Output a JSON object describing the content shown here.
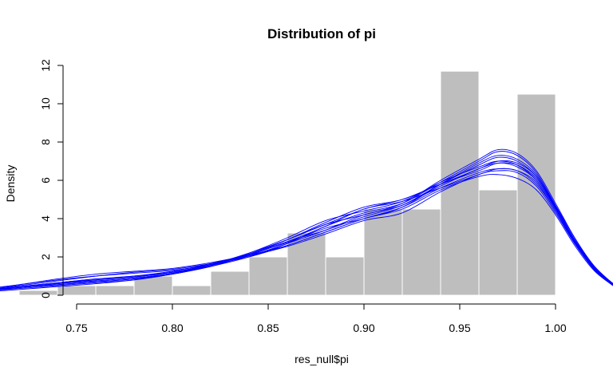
{
  "chart_data": {
    "type": "histogram",
    "title": "Distribution of pi",
    "xlabel": "res_null$pi",
    "ylabel": "Density",
    "xlim": [
      0.71,
      1.03
    ],
    "ylim": [
      0,
      12
    ],
    "x_ticks": [
      "0.75",
      "0.80",
      "0.85",
      "0.90",
      "0.95",
      "1.00"
    ],
    "y_ticks": [
      "0",
      "2",
      "4",
      "6",
      "8",
      "10",
      "12"
    ],
    "bar_color": "#bebebe",
    "bar_border_color": "#ffffff",
    "curve_color": "#0000ff",
    "bins": [
      {
        "x0": 0.72,
        "x1": 0.74,
        "density": 0.25
      },
      {
        "x0": 0.74,
        "x1": 0.76,
        "density": 0.5
      },
      {
        "x0": 0.76,
        "x1": 0.78,
        "density": 0.5
      },
      {
        "x0": 0.78,
        "x1": 0.8,
        "density": 1.0
      },
      {
        "x0": 0.8,
        "x1": 0.82,
        "density": 0.5
      },
      {
        "x0": 0.82,
        "x1": 0.84,
        "density": 1.25
      },
      {
        "x0": 0.84,
        "x1": 0.86,
        "density": 2.0
      },
      {
        "x0": 0.86,
        "x1": 0.88,
        "density": 3.25
      },
      {
        "x0": 0.88,
        "x1": 0.9,
        "density": 2.0
      },
      {
        "x0": 0.9,
        "x1": 0.92,
        "density": 4.5
      },
      {
        "x0": 0.92,
        "x1": 0.94,
        "density": 4.5
      },
      {
        "x0": 0.94,
        "x1": 0.96,
        "density": 11.7
      },
      {
        "x0": 0.96,
        "x1": 0.98,
        "density": 5.5
      },
      {
        "x0": 0.98,
        "x1": 1.0,
        "density": 10.5
      }
    ],
    "density_curves": {
      "x": [
        0.7,
        0.72,
        0.74,
        0.76,
        0.78,
        0.8,
        0.82,
        0.84,
        0.86,
        0.88,
        0.9,
        0.92,
        0.94,
        0.96,
        0.97,
        0.98,
        0.99,
        1.0,
        1.01,
        1.02,
        1.03
      ],
      "series": [
        {
          "values": [
            0.25,
            0.45,
            0.65,
            0.8,
            0.95,
            1.2,
            1.6,
            2.1,
            2.8,
            3.4,
            4.1,
            4.7,
            5.8,
            6.8,
            7.2,
            7.0,
            6.2,
            4.6,
            2.9,
            1.5,
            0.6
          ]
        },
        {
          "values": [
            0.2,
            0.4,
            0.6,
            0.75,
            0.9,
            1.15,
            1.55,
            2.2,
            3.0,
            3.9,
            4.4,
            4.9,
            5.9,
            6.7,
            7.0,
            6.8,
            6.0,
            4.5,
            2.8,
            1.4,
            0.55
          ]
        },
        {
          "values": [
            0.3,
            0.55,
            0.85,
            1.1,
            1.25,
            1.4,
            1.7,
            2.1,
            2.6,
            3.3,
            4.0,
            4.6,
            5.6,
            6.4,
            6.6,
            6.5,
            5.8,
            4.4,
            2.7,
            1.4,
            0.55
          ]
        },
        {
          "values": [
            0.2,
            0.35,
            0.5,
            0.65,
            0.8,
            1.1,
            1.5,
            2.0,
            2.7,
            3.6,
            4.3,
            4.8,
            5.9,
            7.0,
            7.5,
            7.3,
            6.4,
            4.7,
            3.0,
            1.5,
            0.6
          ]
        },
        {
          "values": [
            0.25,
            0.4,
            0.55,
            0.7,
            0.85,
            1.1,
            1.55,
            2.15,
            2.9,
            3.7,
            4.5,
            5.0,
            5.8,
            6.5,
            6.9,
            6.7,
            6.0,
            4.5,
            2.8,
            1.45,
            0.55
          ]
        },
        {
          "values": [
            0.3,
            0.5,
            0.75,
            1.0,
            1.2,
            1.35,
            1.65,
            2.05,
            2.55,
            3.2,
            3.9,
            4.3,
            5.4,
            6.3,
            6.5,
            6.4,
            5.7,
            4.3,
            2.7,
            1.35,
            0.5
          ]
        },
        {
          "values": [
            0.15,
            0.3,
            0.45,
            0.6,
            0.8,
            1.1,
            1.5,
            2.1,
            2.9,
            3.8,
            4.6,
            5.0,
            5.8,
            6.6,
            7.0,
            6.9,
            6.2,
            4.6,
            2.9,
            1.5,
            0.6
          ]
        },
        {
          "values": [
            0.3,
            0.55,
            0.8,
            1.0,
            1.15,
            1.3,
            1.6,
            2.0,
            2.6,
            3.3,
            4.0,
            4.5,
            5.5,
            6.2,
            6.3,
            6.1,
            5.5,
            4.2,
            2.6,
            1.3,
            0.5
          ]
        },
        {
          "values": [
            0.2,
            0.4,
            0.55,
            0.7,
            0.85,
            1.15,
            1.6,
            2.2,
            2.9,
            3.7,
            4.2,
            4.8,
            6.0,
            7.1,
            7.6,
            7.4,
            6.5,
            4.8,
            3.0,
            1.55,
            0.6
          ]
        },
        {
          "values": [
            0.25,
            0.45,
            0.65,
            0.85,
            1.0,
            1.2,
            1.55,
            2.05,
            2.7,
            3.4,
            4.2,
            4.7,
            5.7,
            6.6,
            6.9,
            6.8,
            6.1,
            4.55,
            2.85,
            1.45,
            0.55
          ]
        },
        {
          "values": [
            0.2,
            0.4,
            0.6,
            0.8,
            0.95,
            1.2,
            1.6,
            2.1,
            2.8,
            3.6,
            4.5,
            4.9,
            5.6,
            6.3,
            6.6,
            6.5,
            5.9,
            4.4,
            2.75,
            1.4,
            0.55
          ]
        },
        {
          "values": [
            0.25,
            0.45,
            0.65,
            0.85,
            1.0,
            1.25,
            1.65,
            2.15,
            2.75,
            3.5,
            4.0,
            4.6,
            5.8,
            6.9,
            7.3,
            7.1,
            6.3,
            4.65,
            2.9,
            1.5,
            0.6
          ]
        }
      ]
    }
  }
}
